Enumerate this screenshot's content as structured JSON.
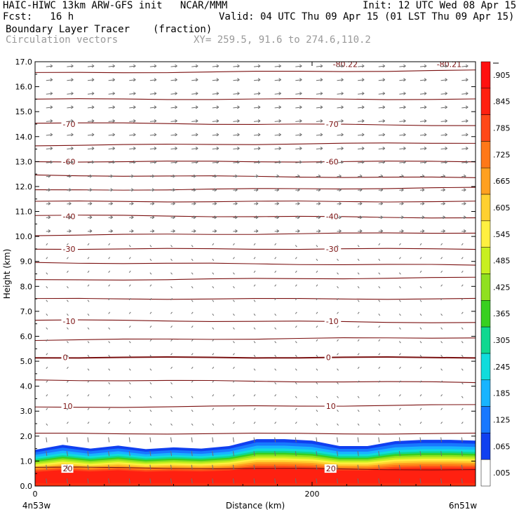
{
  "header": {
    "line1_left": "HAIC-HIWC 13km ARW-GFS init   NCAR/MMM",
    "line1_right": "Init: 12 UTC Wed 08 Apr 15",
    "line2_left": "Fcst:   16 h",
    "line2_right": "Valid: 04 UTC Thu 09 Apr 15 (01 LST Thu 09 Apr 15)",
    "line3_left": "Boundary Layer Tracer",
    "line3_units": "(fraction)",
    "line4_left": "Circulation vectors",
    "line4_xy": "XY= 259.5, 91.6 to 274.6,110.2"
  },
  "chart_data": {
    "type": "heatmap",
    "xlabel": "Distance (km)",
    "ylabel": "Height (km)",
    "x_tick_labels": [
      "0",
      "200"
    ],
    "x_ticks": [
      0,
      200
    ],
    "xlim": [
      0,
      318
    ],
    "x_end_labels": {
      "left": "4n53w",
      "right": "6n51w"
    },
    "ylim": [
      0,
      17
    ],
    "y_ticks": [
      "0.0",
      "1.0",
      "2.0",
      "3.0",
      "4.0",
      "5.0",
      "6.0",
      "7.0",
      "8.0",
      "9.0",
      "10.0",
      "11.0",
      "12.0",
      "13.0",
      "14.0",
      "15.0",
      "16.0",
      "17.0"
    ],
    "colorbar": {
      "labels": [
        ".005",
        ".065",
        ".125",
        ".185",
        ".245",
        ".305",
        ".365",
        ".425",
        ".485",
        ".545",
        ".605",
        ".665",
        ".725",
        ".785",
        ".845",
        ".905"
      ],
      "colors": [
        "#ffffff",
        "#1040f0",
        "#1878ff",
        "#18b4ff",
        "#10dcdc",
        "#10d890",
        "#38d020",
        "#90e020",
        "#c8f020",
        "#fff040",
        "#ffd030",
        "#ffa020",
        "#ff7818",
        "#ff4818",
        "#ff2010",
        "#ff1010"
      ]
    },
    "tracer_top": {
      "x": [
        0,
        20,
        40,
        60,
        80,
        100,
        120,
        140,
        160,
        180,
        200,
        220,
        240,
        260,
        280,
        300,
        318
      ],
      "height": [
        1.45,
        1.65,
        1.5,
        1.62,
        1.48,
        1.55,
        1.5,
        1.6,
        1.88,
        1.88,
        1.82,
        1.6,
        1.6,
        1.8,
        1.85,
        1.85,
        1.82
      ]
    },
    "temperature_contour_labels": [
      {
        "value": "-70",
        "height": 14.5
      },
      {
        "value": "-60",
        "height": 13.0
      },
      {
        "value": "-40",
        "height": 10.8
      },
      {
        "value": "-30",
        "height": 9.5
      },
      {
        "value": "-10",
        "height": 6.6
      },
      {
        "value": "0",
        "height": 5.15
      },
      {
        "value": "10",
        "height": 3.2
      },
      {
        "value": "20",
        "height": 0.7
      },
      {
        "value": "-80.22",
        "height": 16.9
      },
      {
        "value": "-80.21",
        "height": 16.9
      }
    ],
    "contour_color": "#7a1010",
    "vector_color": "#6e6e6e"
  }
}
